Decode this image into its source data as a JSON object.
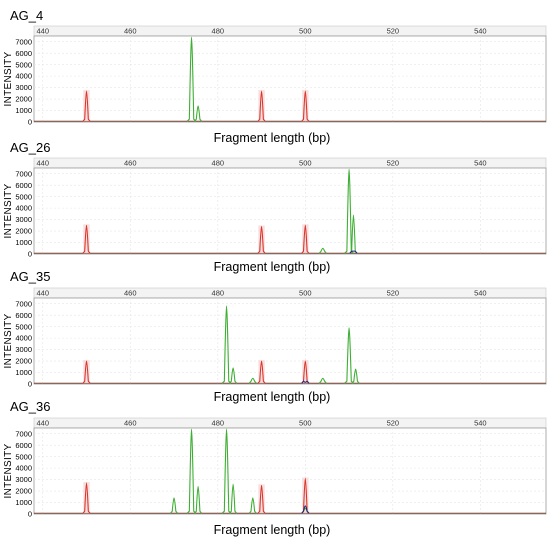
{
  "chart_data": [
    {
      "type": "line",
      "title": "AG_4",
      "xlabel": "Fragment length (bp)",
      "ylabel": "INTENSITY",
      "xlim": [
        438,
        555
      ],
      "ylim": [
        0,
        7500
      ],
      "xticks": [
        440,
        460,
        480,
        500,
        520,
        540
      ],
      "yticks": [
        0,
        1000,
        2000,
        3000,
        4000,
        5000,
        6000,
        7000
      ],
      "grid": true,
      "series": [
        {
          "color": "#d9362b",
          "peaks": [
            {
              "x": 450,
              "y": 2700
            },
            {
              "x": 490,
              "y": 2700
            },
            {
              "x": 500,
              "y": 2700
            }
          ]
        },
        {
          "color": "#3fae34",
          "peaks": [
            {
              "x": 474,
              "y": 7400
            },
            {
              "x": 475.5,
              "y": 1400
            }
          ]
        }
      ]
    },
    {
      "type": "line",
      "title": "AG_26",
      "xlabel": "Fragment length (bp)",
      "ylabel": "INTENSITY",
      "xlim": [
        438,
        555
      ],
      "ylim": [
        0,
        7500
      ],
      "xticks": [
        440,
        460,
        480,
        500,
        520,
        540
      ],
      "yticks": [
        0,
        1000,
        2000,
        3000,
        4000,
        5000,
        6000,
        7000
      ],
      "grid": true,
      "series": [
        {
          "color": "#d9362b",
          "peaks": [
            {
              "x": 450,
              "y": 2500
            },
            {
              "x": 490,
              "y": 2400
            },
            {
              "x": 500,
              "y": 2500
            }
          ]
        },
        {
          "color": "#3fae34",
          "peaks": [
            {
              "x": 504,
              "y": 500
            },
            {
              "x": 510,
              "y": 7400
            },
            {
              "x": 511,
              "y": 3400
            }
          ]
        },
        {
          "color": "#1f2a80",
          "peaks": [
            {
              "x": 511,
              "y": 250
            }
          ]
        }
      ]
    },
    {
      "type": "line",
      "title": "AG_35",
      "xlabel": "Fragment length (bp)",
      "ylabel": "INTENSITY",
      "xlim": [
        438,
        555
      ],
      "ylim": [
        0,
        7500
      ],
      "xticks": [
        440,
        460,
        480,
        500,
        520,
        540
      ],
      "yticks": [
        0,
        1000,
        2000,
        3000,
        4000,
        5000,
        6000,
        7000
      ],
      "grid": true,
      "series": [
        {
          "color": "#d9362b",
          "peaks": [
            {
              "x": 450,
              "y": 2000
            },
            {
              "x": 490,
              "y": 2000
            },
            {
              "x": 500,
              "y": 2000
            }
          ]
        },
        {
          "color": "#3fae34",
          "peaks": [
            {
              "x": 482,
              "y": 6800
            },
            {
              "x": 483.5,
              "y": 1400
            },
            {
              "x": 488,
              "y": 500
            },
            {
              "x": 504,
              "y": 500
            },
            {
              "x": 510,
              "y": 4900
            },
            {
              "x": 511.5,
              "y": 1300
            }
          ]
        },
        {
          "color": "#1f2a80",
          "peaks": [
            {
              "x": 500,
              "y": 150
            }
          ]
        }
      ]
    },
    {
      "type": "line",
      "title": "AG_36",
      "xlabel": "Fragment length (bp)",
      "ylabel": "INTENSITY",
      "xlim": [
        438,
        555
      ],
      "ylim": [
        0,
        7500
      ],
      "xticks": [
        440,
        460,
        480,
        500,
        520,
        540
      ],
      "yticks": [
        0,
        1000,
        2000,
        3000,
        4000,
        5000,
        6000,
        7000
      ],
      "grid": true,
      "series": [
        {
          "color": "#d9362b",
          "peaks": [
            {
              "x": 450,
              "y": 2700
            },
            {
              "x": 490,
              "y": 2500
            },
            {
              "x": 500,
              "y": 3100
            }
          ]
        },
        {
          "color": "#3fae34",
          "peaks": [
            {
              "x": 470,
              "y": 1400
            },
            {
              "x": 474,
              "y": 7400
            },
            {
              "x": 475.5,
              "y": 2400
            },
            {
              "x": 482,
              "y": 7400
            },
            {
              "x": 483.5,
              "y": 2600
            },
            {
              "x": 488,
              "y": 1400
            },
            {
              "x": 500,
              "y": 500
            }
          ]
        },
        {
          "color": "#1f2a80",
          "peaks": [
            {
              "x": 500,
              "y": 700
            }
          ]
        }
      ]
    }
  ]
}
